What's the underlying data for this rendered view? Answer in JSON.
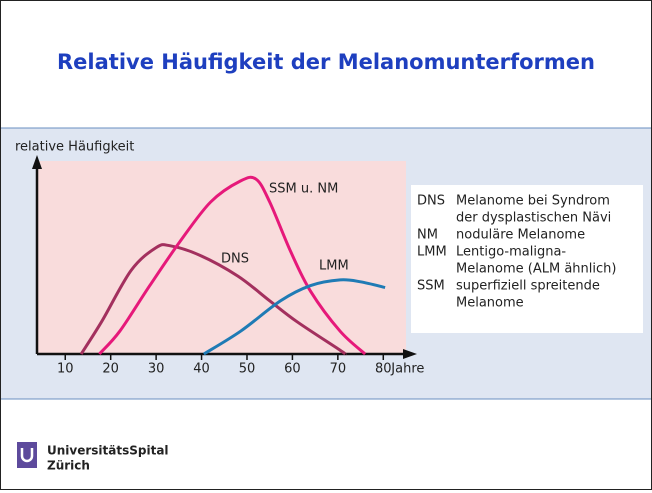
{
  "slide": {
    "title": "Relative Häufigkeit der Melanomunterformen",
    "logo": [
      "UniversitätsSpital",
      "Zürich"
    ]
  },
  "legend_box": [
    [
      "DNS",
      "Melanome bei Syndrom"
    ],
    [
      "",
      "der dysplastischen Nävi"
    ],
    [
      "NM",
      "noduläre Melanome"
    ],
    [
      "LMM",
      "Lentigo-maligna-"
    ],
    [
      "",
      "Melanome (ALM ähnlich)"
    ],
    [
      "SSM",
      "superfiziell spreitende"
    ],
    [
      "",
      "Melanome"
    ]
  ],
  "chart_data": {
    "type": "line",
    "ylabel": "relative Häufigkeit",
    "xlabel": "Jahre",
    "xlim": [
      4,
      85
    ],
    "ylim": [
      0,
      100
    ],
    "xticks": [
      10,
      20,
      30,
      40,
      50,
      60,
      70,
      80
    ],
    "series": [
      {
        "name": "DNS",
        "color": "#a3305e",
        "x": [
          13.5,
          18,
          24.5,
          30,
          33,
          39.6,
          48,
          55,
          61,
          70.5,
          71.6
        ],
        "values": [
          0,
          17,
          44,
          56,
          57,
          52,
          41,
          28,
          17,
          2,
          0
        ]
      },
      {
        "name": "SSM u. NM",
        "color": "#e6197a",
        "x": [
          17.5,
          22,
          28.6,
          35.2,
          42,
          48.5,
          52,
          55,
          59.6,
          64,
          70.5,
          76
        ],
        "values": [
          0,
          12,
          36,
          59,
          80,
          91,
          92,
          80,
          54,
          33,
          12,
          0
        ]
      },
      {
        "name": "LMM",
        "color": "#1f7bb5",
        "x": [
          40.5,
          48.6,
          57.4,
          64,
          70.5,
          75,
          80.4
        ],
        "values": [
          0,
          12,
          28,
          36,
          39,
          38,
          35
        ]
      }
    ]
  }
}
